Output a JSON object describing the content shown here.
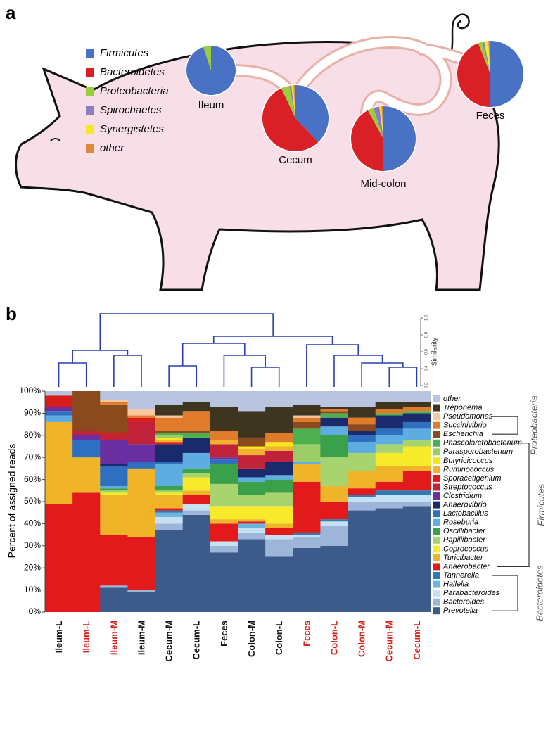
{
  "chart_data": [
    {
      "type": "pie",
      "panel_label": "a",
      "categories": [
        "Firmicutes",
        "Bacteroidetes",
        "Proteobacteria",
        "Spirochaetes",
        "Synergistetes",
        "other"
      ],
      "colors": [
        "#4a72c4",
        "#d92027",
        "#9acd3a",
        "#8e7cc3",
        "#f2e92a",
        "#d98a3a"
      ],
      "pies": [
        {
          "label": "Ileum",
          "values": [
            95,
            0,
            5,
            0,
            0,
            0
          ]
        },
        {
          "label": "Cecum",
          "values": [
            38,
            55,
            4,
            1,
            1,
            1
          ]
        },
        {
          "label": "Mid-colon",
          "values": [
            50,
            42,
            3,
            3,
            1,
            1
          ]
        },
        {
          "label": "Feces",
          "values": [
            50,
            44,
            2,
            1,
            2,
            1
          ]
        }
      ]
    },
    {
      "type": "stacked_bar",
      "panel_label": "b",
      "ylabel": "Percent of assigned reads",
      "categories": [
        "Ileum-L",
        "Ileum-L",
        "Ileum-M",
        "Ileum-M",
        "Cecum-M",
        "Cecum-L",
        "Feces",
        "Colon-M",
        "Colon-L",
        "Feces",
        "Colon-L",
        "Colon-M",
        "Cecum-M",
        "Cecum-L"
      ],
      "category_colors": [
        "#111111",
        "#d9211c",
        "#d9211c",
        "#111111",
        "#111111",
        "#111111",
        "#111111",
        "#111111",
        "#111111",
        "#d9211c",
        "#d9211c",
        "#d9211c",
        "#d9211c",
        "#d9211c"
      ],
      "ylim": [
        0,
        100
      ],
      "yticks": [
        {
          "value": 0,
          "label": "0%"
        },
        {
          "value": 10,
          "label": "10%"
        },
        {
          "value": 20,
          "label": "20%"
        },
        {
          "value": 30,
          "label": "30%"
        },
        {
          "value": 40,
          "label": "40%"
        },
        {
          "value": 50,
          "label": "50%"
        },
        {
          "value": 60,
          "label": "60%"
        },
        {
          "value": 70,
          "label": "70%"
        },
        {
          "value": 80,
          "label": "80%"
        },
        {
          "value": 90,
          "label": "90%"
        },
        {
          "value": 100,
          "label": "100%"
        }
      ],
      "series": [
        {
          "name": "other",
          "color": "#b8c4e0",
          "values": [
            2,
            0,
            4,
            8,
            6,
            5,
            7,
            9,
            7,
            6,
            7,
            7,
            5,
            5
          ]
        },
        {
          "name": "Treponema",
          "color": "#3d3520",
          "values": [
            0,
            0,
            0,
            0,
            5,
            4,
            11,
            12,
            12,
            5,
            1,
            5,
            3,
            2
          ]
        },
        {
          "name": "Pseudomonas",
          "color": "#f6c7a0",
          "values": [
            0,
            0,
            1,
            3,
            1,
            0,
            0,
            0,
            0,
            1,
            0,
            0,
            0,
            0
          ]
        },
        {
          "name": "Succinivibrio",
          "color": "#e07b2a",
          "values": [
            0,
            0,
            1,
            1,
            6,
            9,
            4,
            0,
            4,
            2,
            1,
            3,
            2,
            2
          ]
        },
        {
          "name": "Escherichia",
          "color": "#8b4a1e",
          "values": [
            0,
            18,
            13,
            0,
            1,
            1,
            0,
            4,
            0,
            3,
            1,
            3,
            0,
            0
          ]
        },
        {
          "name": "Phascolarctobacterium",
          "color": "#4caf50",
          "values": [
            0,
            0,
            0,
            0,
            1,
            2,
            0,
            0,
            0,
            7,
            2,
            0,
            1,
            1
          ]
        },
        {
          "name": "Parasporobacterium",
          "color": "#9ccc65",
          "values": [
            0,
            0,
            0,
            0,
            1,
            0,
            0,
            0,
            0,
            8,
            0,
            0,
            0,
            0
          ]
        },
        {
          "name": "Butyricicoccus",
          "color": "#f5e61e",
          "values": [
            0,
            0,
            0,
            0,
            1,
            0,
            0,
            1,
            2,
            0,
            0,
            0,
            0,
            0
          ]
        },
        {
          "name": "Ruminococcus",
          "color": "#f0b030",
          "values": [
            0,
            0,
            0,
            0,
            1,
            0,
            2,
            3,
            2,
            0,
            0,
            0,
            0,
            0
          ]
        },
        {
          "name": "Sporacetigenium",
          "color": "#d81b1b",
          "values": [
            5,
            0,
            1,
            2,
            1,
            0,
            0,
            0,
            0,
            0,
            0,
            0,
            0,
            0
          ]
        },
        {
          "name": "Streptococcus",
          "color": "#c0223a",
          "values": [
            0,
            2,
            2,
            10,
            0,
            0,
            6,
            6,
            5,
            0,
            0,
            0,
            0,
            0
          ]
        },
        {
          "name": "Clostridium",
          "color": "#6a2fa0",
          "values": [
            2,
            2,
            11,
            8,
            0,
            0,
            1,
            0,
            0,
            0,
            0,
            0,
            0,
            0
          ]
        },
        {
          "name": "Anaerovibrio",
          "color": "#1a2a6c",
          "values": [
            0,
            0,
            1,
            0,
            8,
            7,
            0,
            4,
            6,
            0,
            4,
            2,
            6,
            4
          ]
        },
        {
          "name": "Lactobacillus",
          "color": "#2e6fc0",
          "values": [
            2,
            8,
            9,
            3,
            1,
            0,
            2,
            0,
            0,
            0,
            0,
            3,
            3,
            3
          ]
        },
        {
          "name": "Roseburia",
          "color": "#5dade2",
          "values": [
            3,
            0,
            1,
            0,
            10,
            7,
            0,
            2,
            2,
            1,
            4,
            5,
            4,
            5
          ]
        },
        {
          "name": "Oscillibacter",
          "color": "#3aa04a",
          "values": [
            0,
            0,
            1,
            0,
            2,
            2,
            9,
            6,
            6,
            0,
            10,
            0,
            0,
            0
          ]
        },
        {
          "name": "Papillibacter",
          "color": "#a8d46f",
          "values": [
            0,
            0,
            1,
            0,
            1,
            2,
            10,
            5,
            6,
            0,
            13,
            8,
            4,
            3
          ]
        },
        {
          "name": "Coprococcus",
          "color": "#f7ea2a",
          "values": [
            0,
            0,
            1,
            0,
            1,
            6,
            6,
            6,
            8,
            0,
            0,
            0,
            6,
            9
          ]
        },
        {
          "name": "Turicibacter",
          "color": "#f0b429",
          "values": [
            37,
            16,
            18,
            31,
            6,
            2,
            2,
            1,
            2,
            8,
            7,
            8,
            7,
            2
          ]
        },
        {
          "name": "Anaerobacter",
          "color": "#e31a1c",
          "values": [
            49,
            54,
            23,
            24,
            1,
            4,
            8,
            1,
            3,
            23,
            8,
            3,
            4,
            9
          ]
        },
        {
          "name": "Tannerella",
          "color": "#2d7bb6",
          "values": [
            0,
            0,
            0,
            0,
            1,
            0,
            0,
            0,
            0,
            1,
            1,
            1,
            2,
            2
          ]
        },
        {
          "name": "Hallella",
          "color": "#6bb6e0",
          "values": [
            0,
            0,
            0,
            0,
            2,
            0,
            0,
            2,
            0,
            0,
            0,
            0,
            0,
            0
          ]
        },
        {
          "name": "Parabacteroides",
          "color": "#c6e2f2",
          "values": [
            0,
            0,
            0,
            0,
            3,
            3,
            2,
            2,
            2,
            1,
            2,
            2,
            3,
            3
          ]
        },
        {
          "name": "Bacteroides",
          "color": "#9db5d9",
          "values": [
            0,
            0,
            1,
            1,
            3,
            2,
            3,
            3,
            8,
            5,
            9,
            4,
            3,
            2
          ]
        },
        {
          "name": "Prevotella",
          "color": "#3c5a8a",
          "values": [
            0,
            0,
            11,
            9,
            37,
            44,
            27,
            33,
            25,
            29,
            30,
            46,
            47,
            48
          ]
        }
      ],
      "phylum_labels": [
        "Proteobacteria",
        "Firmicutes",
        "Bacteroidetes"
      ],
      "dendrogram": {
        "axis_label": "Similarity",
        "ylim": [
          0.2,
          1.0
        ],
        "yticks": [
          0.2,
          0.4,
          0.6,
          0.8,
          {
            "value": 1.0,
            "label": "1.0"
          }
        ]
      }
    }
  ]
}
